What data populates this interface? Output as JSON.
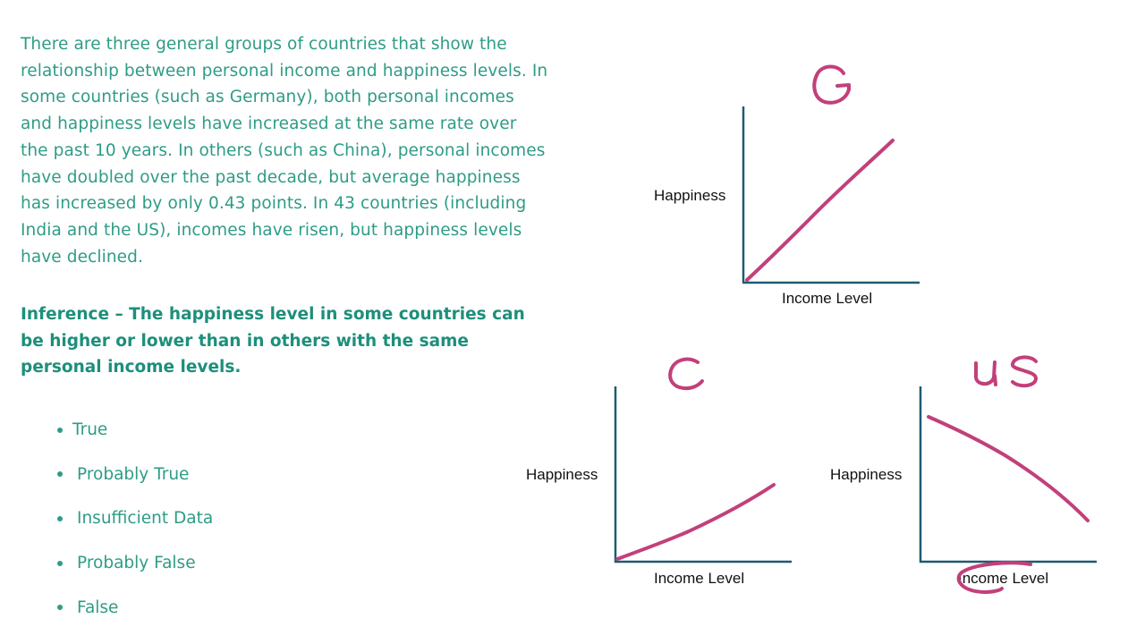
{
  "paragraph": "There are three general groups of countries that show the relationship between personal income and happiness levels. In some countries (such as Germany), both personal incomes and happiness levels have increased at the same rate over the past 10 years. In others (such as China), personal incomes have doubled over the past decade, but average happiness has increased by only 0.43 points. In 43 countries (including India and the US), incomes have risen, but happiness levels have declined.",
  "inference": "Inference – The happiness level in some countries can be higher or lower than in others with the same personal income levels.",
  "options": [
    "True",
    "Probably True",
    "Insufficient Data",
    "Probably False",
    "False"
  ],
  "graphs": {
    "germany": {
      "handwritten_label": "G",
      "y_label": "Happiness",
      "x_label": "Income Level"
    },
    "china": {
      "handwritten_label": "C",
      "y_label": "Happiness",
      "x_label": "Income Level"
    },
    "us": {
      "handwritten_label": "US",
      "y_label": "Happiness",
      "x_label": "Income Level"
    }
  },
  "colors": {
    "text_teal": "#2e9c86",
    "ink_magenta": "#c2407a",
    "axis_blue": "#1f5a72"
  }
}
